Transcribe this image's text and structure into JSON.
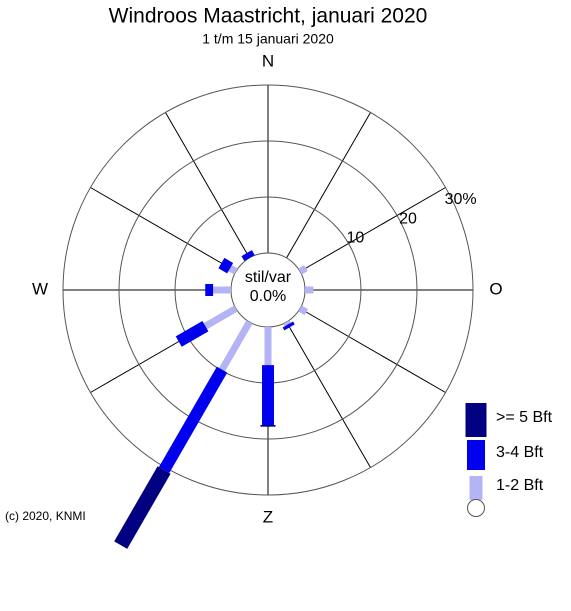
{
  "chart_data": {
    "type": "windrose",
    "title": "Windroos Maastricht, januari 2020",
    "subtitle": "1 t/m 15 januari 2020",
    "x": [
      0,
      30,
      60,
      90,
      120,
      150,
      180,
      210,
      240,
      270,
      300,
      330
    ],
    "xticks": [
      {
        "value": 0,
        "label": "N"
      },
      {
        "value": 90,
        "label": "O"
      },
      {
        "value": 180,
        "label": "Z"
      },
      {
        "value": 270,
        "label": "W"
      }
    ],
    "rlim": [
      0,
      30
    ],
    "rticks": [
      10,
      20,
      {
        "value": 30,
        "label": "30%"
      }
    ],
    "series": [
      {
        "name": "1-2 Bft",
        "color": "#b3b3f5",
        "values": [
          0,
          0,
          1.2,
          1.5,
          1.3,
          0.5,
          6.8,
          9.8,
          6.3,
          3.2,
          1.2,
          0
        ]
      },
      {
        "name": "3-4 Bft",
        "color": "#0000ee",
        "values": [
          0,
          0,
          0,
          0,
          0,
          0.6,
          10.7,
          20.7,
          5.5,
          1.4,
          1.8,
          1.0
        ]
      },
      {
        "name": ">= 5 Bft",
        "color": "#000080",
        "values": [
          0,
          0,
          0,
          0,
          0,
          0,
          0.3,
          15.5,
          0,
          0,
          0,
          0
        ]
      }
    ],
    "calm": {
      "label": "stil/var",
      "value": 0,
      "value_label": "0.0%"
    },
    "credit": "(c) 2020, KNMI"
  }
}
